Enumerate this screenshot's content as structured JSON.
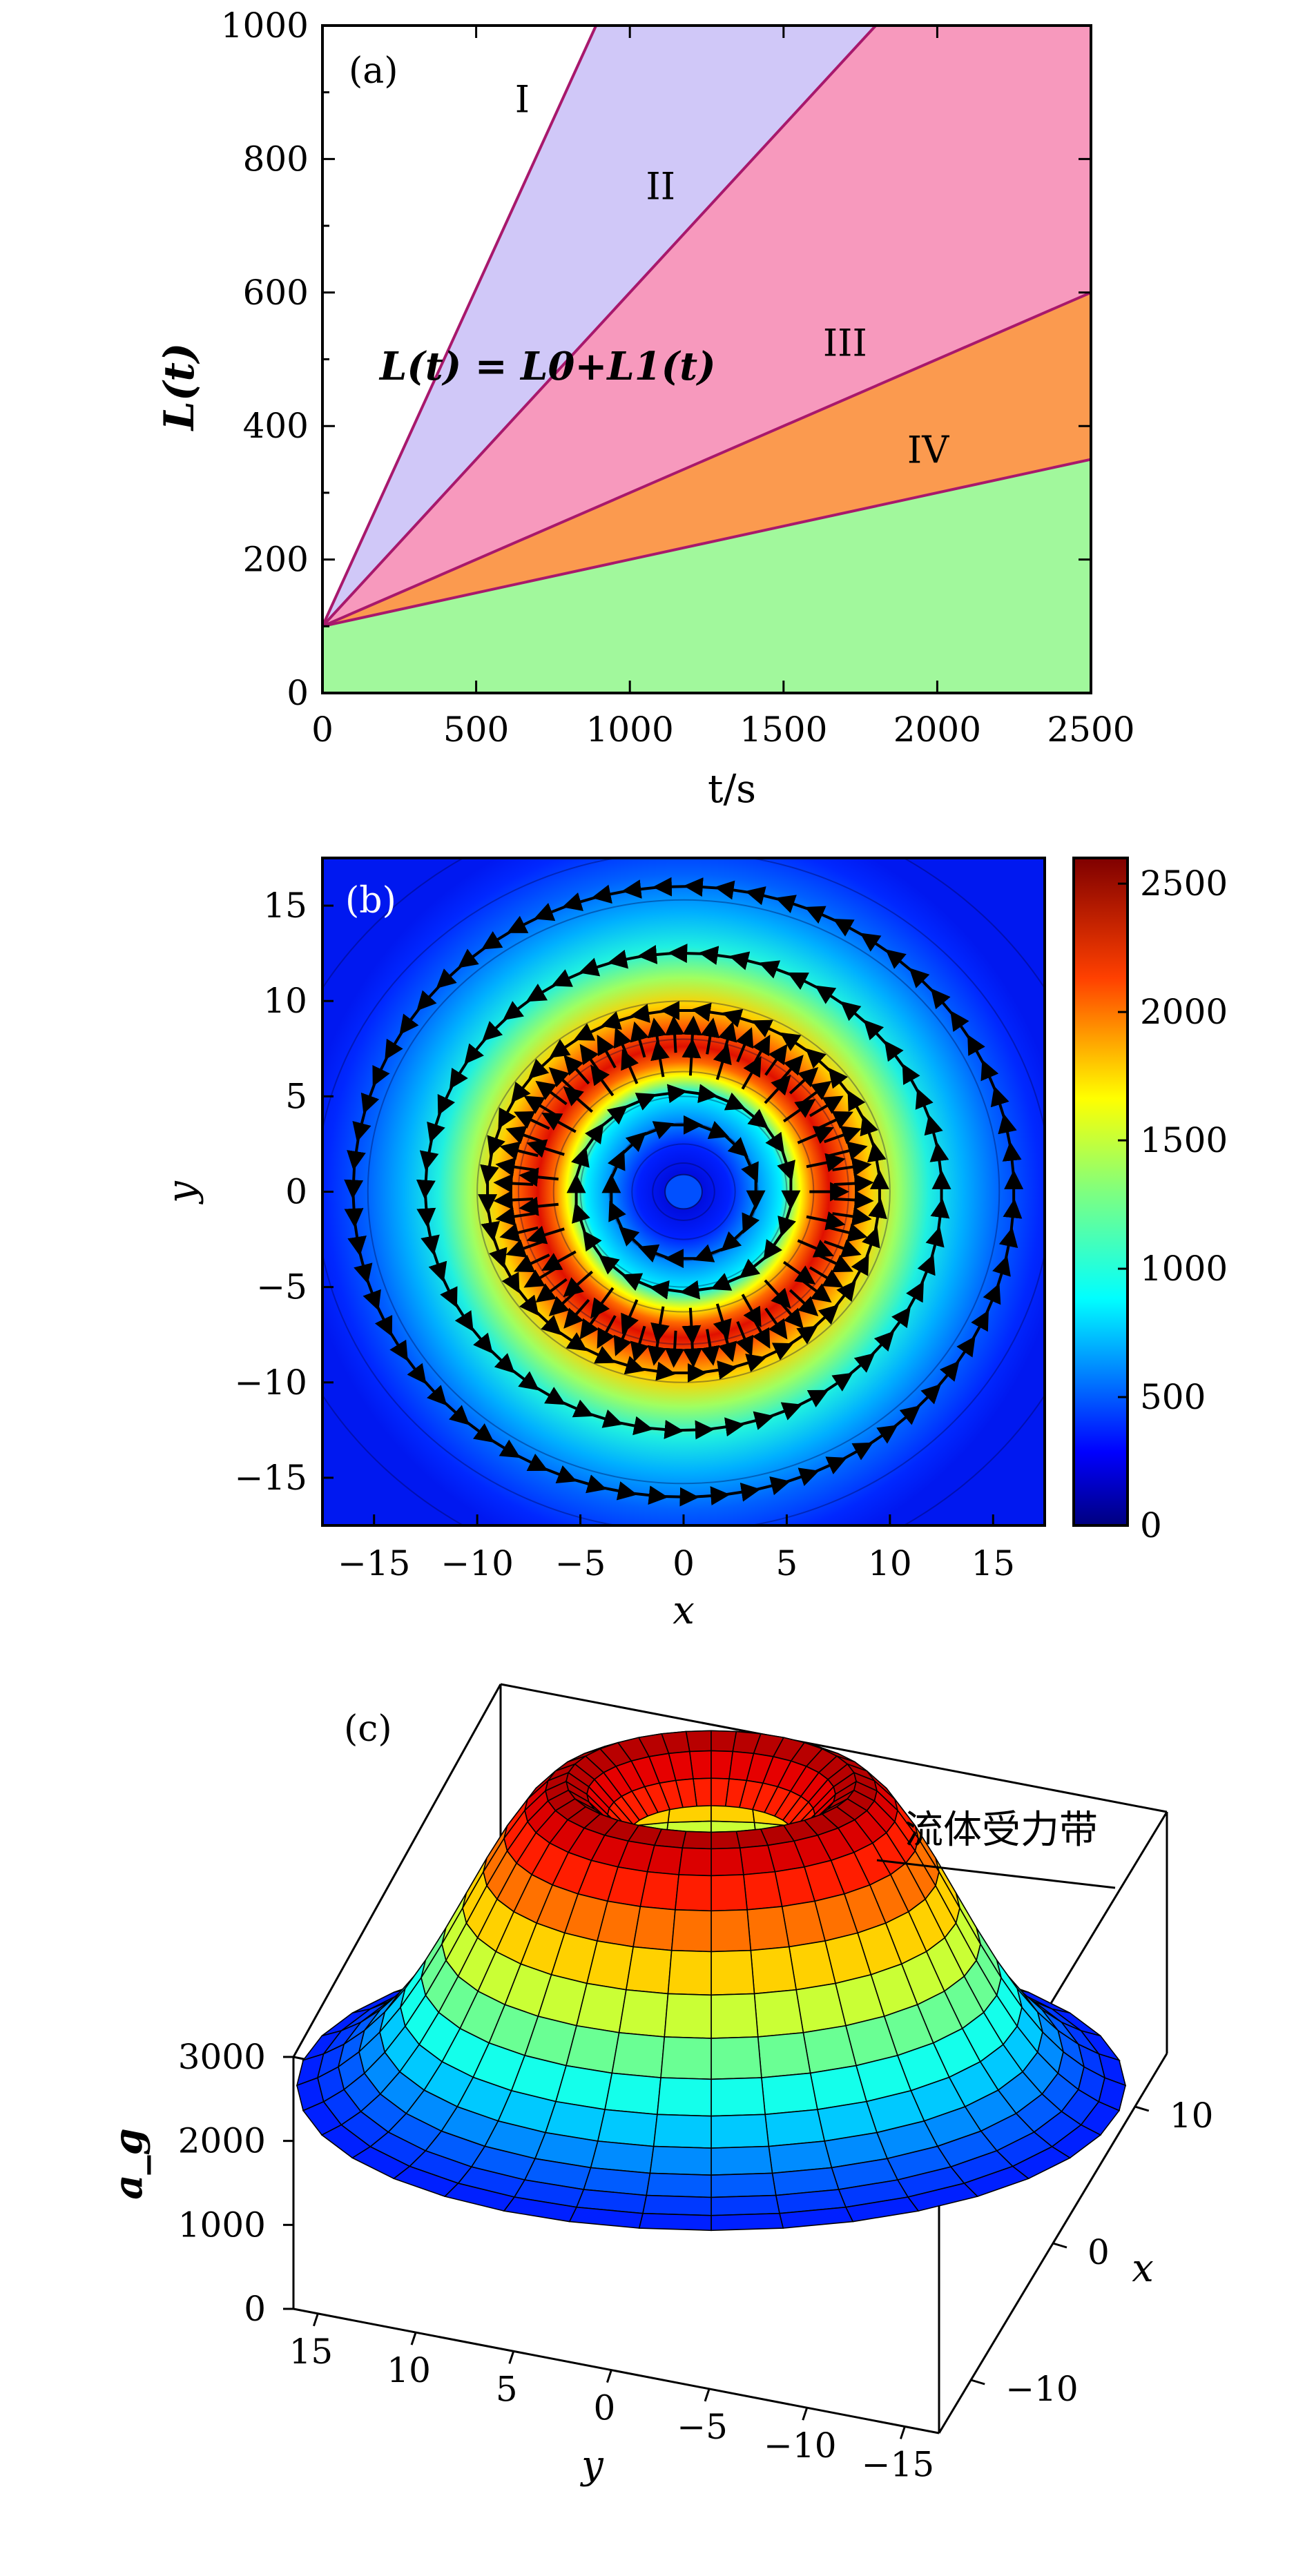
{
  "chart_data": [
    {
      "panel": "(a)",
      "type": "area",
      "xlabel": "t/s",
      "ylabel": "L(t)",
      "xlim": [
        0,
        2500
      ],
      "ylim": [
        0,
        1000
      ],
      "xticks": [
        "0",
        "500",
        "1000",
        "1500",
        "2000",
        "2500"
      ],
      "yticks": [
        "0",
        "200",
        "400",
        "600",
        "800",
        "1000"
      ],
      "annotation": "L(t) = L0+L1(t)",
      "boundary_lines": [
        {
          "points": [
            [
              0,
              100
            ],
            [
              890,
              1000
            ]
          ]
        },
        {
          "points": [
            [
              0,
              100
            ],
            [
              1800,
              1000
            ]
          ]
        },
        {
          "points": [
            [
              0,
              100
            ],
            [
              2500,
              600
            ]
          ]
        },
        {
          "points": [
            [
              0,
              100
            ],
            [
              2500,
              350
            ]
          ]
        }
      ],
      "regions": [
        {
          "name": "I",
          "color": "#ffffff",
          "label_at": [
            650,
            870
          ]
        },
        {
          "name": "II",
          "color": "#d0c8f8",
          "label_at": [
            1100,
            740
          ]
        },
        {
          "name": "III",
          "color": "#f799bd",
          "label_at": [
            1700,
            505
          ]
        },
        {
          "name": "IV",
          "color": "#fb9a4f",
          "label_at": [
            1970,
            345
          ]
        },
        {
          "name": "",
          "color": "#a1f89c"
        }
      ],
      "line_color": "#a8186c",
      "grid": false
    },
    {
      "panel": "(b)",
      "type": "heatmap",
      "xlabel": "x",
      "ylabel": "y",
      "xlim": [
        -17.5,
        17.5
      ],
      "ylim": [
        -17.5,
        17.5
      ],
      "xticks": [
        "−15",
        "−10",
        "−5",
        "0",
        "5",
        "10",
        "15"
      ],
      "yticks": [
        "−15",
        "−10",
        "−5",
        "0",
        "5",
        "10",
        "15"
      ],
      "colorbar": {
        "range": [
          0,
          2600
        ],
        "ticks": [
          "0",
          "500",
          "1000",
          "1500",
          "2000",
          "2500"
        ]
      },
      "field_profile": {
        "peak_radius": 7,
        "peak_value": 2550,
        "center_value": 150,
        "edge_value": 100
      },
      "arrow_rings": [
        {
          "radius": 3.5,
          "direction": "clockwise"
        },
        {
          "radius": 5.2,
          "direction": "clockwise"
        },
        {
          "radius": 7,
          "direction": "radial-out"
        },
        {
          "radius": 9.5,
          "direction": "counterclockwise"
        },
        {
          "radius": 12.5,
          "direction": "counterclockwise"
        },
        {
          "radius": 16,
          "direction": "counterclockwise"
        }
      ]
    },
    {
      "panel": "(c)",
      "type": "surface3d",
      "xlabel": "x",
      "ylabel": "y",
      "zlabel": "a_g",
      "xticks": [
        "−10",
        "0",
        "10"
      ],
      "yticks": [
        "15",
        "10",
        "5",
        "0",
        "−5",
        "−10",
        "−15"
      ],
      "zticks": [
        "0",
        "1000",
        "2000",
        "3000"
      ],
      "zlim": [
        0,
        3000
      ],
      "annotation": "流体受力带",
      "surface_profile": {
        "radial_range": [
          3,
          15
        ],
        "peak_radius": 5,
        "peak_value": 2600,
        "outer_value": 300
      }
    }
  ],
  "colormap": [
    "#00007f",
    "#0000ff",
    "#007fff",
    "#00ffff",
    "#7fff7f",
    "#ffff00",
    "#ff7f00",
    "#ff0000",
    "#7f0000"
  ]
}
